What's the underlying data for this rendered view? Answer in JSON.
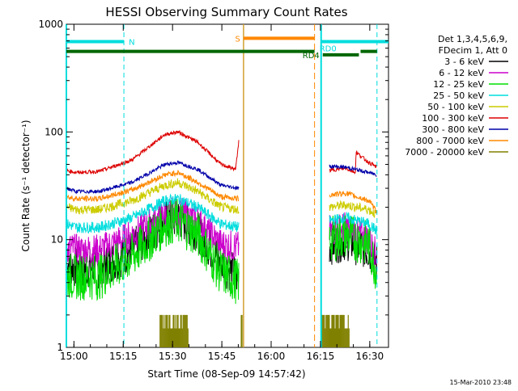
{
  "chart_data": {
    "type": "line",
    "title": "HESSI Observing Summary Count Rates",
    "xlabel": "Start Time (08-Sep-09 14:57:42)",
    "ylabel": "Count Rate (s⁻¹ detector⁻¹)",
    "yscale": "log",
    "ylim": [
      1,
      1000
    ],
    "xlim_min_after_start": [
      0,
      98
    ],
    "x_ticks": [
      "15:00",
      "15:15",
      "15:30",
      "15:45",
      "16:00",
      "16:15",
      "16:30"
    ],
    "x_tick_minutes": [
      2.3,
      17.3,
      32.3,
      47.3,
      62.3,
      77.3,
      92.3
    ],
    "y_ticks": [
      "1",
      "10",
      "100",
      "1000"
    ],
    "y_tick_values": [
      1,
      10,
      100,
      1000
    ],
    "legend_header": [
      "Det 1,3,4,5,6,9,",
      "FDecim 1, Att 0"
    ],
    "legend_position": "right",
    "series": [
      {
        "name": "3 - 6 keV",
        "color": "#000000",
        "noise": 0.45,
        "x": [
          0,
          3,
          10,
          20,
          30,
          34,
          40,
          47,
          52.5,
          77.5,
          80,
          85,
          92,
          94.5
        ],
        "y": [
          6,
          5.5,
          5.4,
          8,
          15,
          16,
          12,
          6,
          4.5,
          null,
          9,
          10,
          8,
          6
        ]
      },
      {
        "name": "6 - 12 keV",
        "color": "#cc00cc",
        "noise": 0.35,
        "x": [
          0,
          3,
          10,
          20,
          30,
          34,
          40,
          47,
          52.5,
          77.5,
          80,
          85,
          92,
          94.5
        ],
        "y": [
          8.5,
          8,
          8,
          11,
          17,
          18,
          15,
          9,
          8.5,
          null,
          12,
          13,
          10,
          7
        ]
      },
      {
        "name": "12 - 25 keV",
        "color": "#00dd00",
        "noise": 0.5,
        "x": [
          0,
          3,
          10,
          20,
          30,
          34,
          40,
          47,
          52.5,
          77.5,
          80,
          85,
          92,
          94.5
        ],
        "y": [
          4.5,
          4.5,
          4.5,
          7,
          14,
          15,
          11,
          5,
          4,
          null,
          10,
          11,
          9,
          5
        ]
      },
      {
        "name": "25 - 50 keV",
        "color": "#00dddd",
        "noise": 0.12,
        "x": [
          0,
          3,
          10,
          20,
          30,
          34,
          40,
          47,
          52.5,
          77.5,
          80,
          85,
          92,
          94.5
        ],
        "y": [
          14,
          13,
          13,
          16,
          23,
          24,
          20,
          14,
          13,
          null,
          15,
          16,
          14,
          12
        ]
      },
      {
        "name": "50 - 100 keV",
        "color": "#cccc00",
        "noise": 0.1,
        "x": [
          0,
          3,
          10,
          20,
          30,
          34,
          40,
          47,
          52.5,
          77.5,
          80,
          85,
          92,
          94.5
        ],
        "y": [
          20,
          19,
          19,
          23,
          32,
          34,
          28,
          20,
          19,
          null,
          20,
          21,
          19,
          17
        ]
      },
      {
        "name": "100 - 300 keV",
        "color": "#dd0000",
        "noise": 0.04,
        "x": [
          0,
          3,
          10,
          20,
          30,
          34,
          40,
          47,
          51.5,
          52.5,
          77.5,
          80,
          85,
          88,
          88.1,
          92,
          94.5
        ],
        "y": [
          44,
          42,
          43,
          55,
          95,
          100,
          80,
          50,
          45,
          85,
          null,
          44,
          46,
          42,
          65,
          52,
          47
        ]
      },
      {
        "name": "300 - 800 keV",
        "color": "#0000aa",
        "noise": 0.04,
        "x": [
          0,
          3,
          10,
          20,
          30,
          34,
          40,
          47,
          52.5,
          77.5,
          80,
          85,
          92,
          94.5
        ],
        "y": [
          30,
          28,
          28,
          34,
          50,
          52,
          45,
          32,
          30,
          null,
          48,
          47,
          42,
          40
        ]
      },
      {
        "name": "800 - 7000 keV",
        "color": "#ff8800",
        "noise": 0.06,
        "x": [
          0,
          3,
          10,
          20,
          30,
          34,
          40,
          47,
          52.5,
          77.5,
          80,
          85,
          92,
          94.5
        ],
        "y": [
          25,
          24,
          24,
          29,
          40,
          42,
          34,
          25,
          24,
          null,
          26,
          27,
          23,
          18
        ]
      },
      {
        "name": "7000 - 20000 keV",
        "color": "#808000",
        "noise": 0,
        "x": [],
        "y": []
      }
    ],
    "bursts_7000_20000": [
      [
        28.5,
        37
      ],
      [
        53.2,
        53.6
      ],
      [
        77.5,
        86
      ]
    ],
    "burst_level": 2,
    "saa_line_min": 53.9,
    "attenuator_lines_min": [
      75.5
    ],
    "flags": [
      {
        "label": "N",
        "color": "#00dddd",
        "y": 690,
        "segments": [
          [
            0,
            17.5
          ]
        ]
      },
      {
        "label": "S",
        "color": "#ff8800",
        "y": 740,
        "segments": [
          [
            53.9,
            75.5
          ]
        ]
      },
      {
        "label": "RD0",
        "color": "#00dddd",
        "y": 690,
        "segments": [
          [
            77.5,
            98
          ]
        ]
      },
      {
        "label": "RD4",
        "color": "#006600",
        "y": 520,
        "segments": [
          [
            78,
            89
          ]
        ]
      },
      {
        "label": "",
        "color": "#006600",
        "y": 560,
        "segments": [
          [
            0,
            75.5
          ],
          [
            89.5,
            94.5
          ]
        ]
      }
    ],
    "night_lines_min": [
      0,
      17.5,
      77.5,
      94.5
    ],
    "footer": "15-Mar-2010 23:48"
  }
}
